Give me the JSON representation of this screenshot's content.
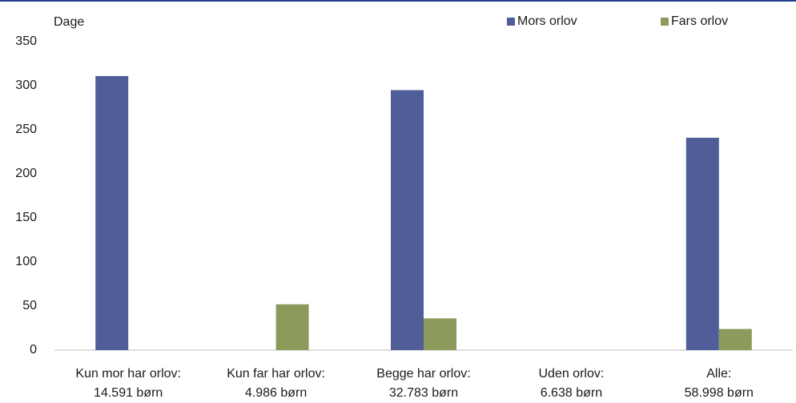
{
  "chart_data": {
    "type": "bar",
    "y_label": "Dage",
    "categories": [
      [
        "Kun mor har orlov:",
        "14.591 børn"
      ],
      [
        "Kun far har orlov:",
        "4.986 børn"
      ],
      [
        "Begge har orlov:",
        "32.783 børn"
      ],
      [
        "Uden orlov:",
        "6.638 børn"
      ],
      [
        "Alle:",
        "58.998 børn"
      ]
    ],
    "series": [
      {
        "name": "Mors orlov",
        "color": "#4f5e99",
        "values": [
          311,
          0,
          295,
          0,
          241
        ]
      },
      {
        "name": "Fars orlov",
        "color": "#8c9a5b",
        "values": [
          0,
          52,
          36,
          0,
          24
        ]
      }
    ],
    "ylim": [
      0,
      350
    ],
    "yticks": [
      0,
      50,
      100,
      150,
      200,
      250,
      300,
      350
    ],
    "grid": false,
    "legend": "top-right"
  }
}
